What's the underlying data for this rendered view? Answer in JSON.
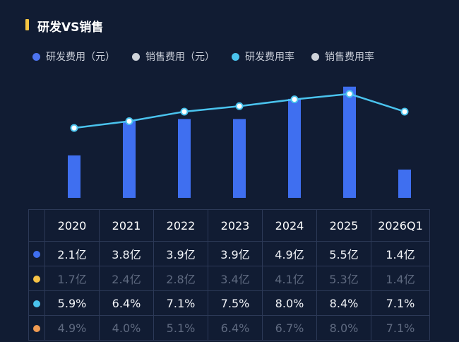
{
  "title": "研发VS销售",
  "colors": {
    "bar": "#3f6ff0",
    "line": "#4ac3ee",
    "sales_expense_dot": "#f7c346",
    "sales_rate_dot": "#f09b52",
    "grid": "#2c3957"
  },
  "legend": [
    {
      "label": "研发费用（元）",
      "color": "#4d74f0"
    },
    {
      "label": "销售费用（元）",
      "color": "#cfd3da"
    },
    {
      "label": "研发费用率",
      "color": "#4ac3ee"
    },
    {
      "label": "销售费用率",
      "color": "#cfd3da"
    }
  ],
  "chart_data": {
    "type": "bar",
    "categories": [
      "2020",
      "2021",
      "2022",
      "2023",
      "2024",
      "2025",
      "2026Q1"
    ],
    "series": [
      {
        "type": "bar",
        "values": [
          2.1,
          3.8,
          3.9,
          3.9,
          4.9,
          5.5,
          1.4
        ]
      },
      {
        "type": "line",
        "values": [
          5.9,
          6.4,
          7.1,
          7.5,
          8.0,
          8.4,
          7.1
        ]
      }
    ],
    "table": {
      "rows": [
        {
          "dot": "#3f6ff0",
          "style": "bright",
          "cells": [
            "2.1亿",
            "3.8亿",
            "3.9亿",
            "3.9亿",
            "4.9亿",
            "5.5亿",
            "1.4亿"
          ]
        },
        {
          "dot": "#f7c346",
          "style": "dim",
          "cells": [
            "1.7亿",
            "2.4亿",
            "2.8亿",
            "3.4亿",
            "4.1亿",
            "5.3亿",
            "1.4亿"
          ]
        },
        {
          "dot": "#4ac3ee",
          "style": "bright",
          "cells": [
            "5.9%",
            "6.4%",
            "7.1%",
            "7.5%",
            "8.0%",
            "8.4%",
            "7.1%"
          ]
        },
        {
          "dot": "#f09b52",
          "style": "dim",
          "cells": [
            "4.9%",
            "4.0%",
            "5.1%",
            "6.4%",
            "6.7%",
            "8.0%",
            "7.1%"
          ]
        }
      ]
    }
  }
}
